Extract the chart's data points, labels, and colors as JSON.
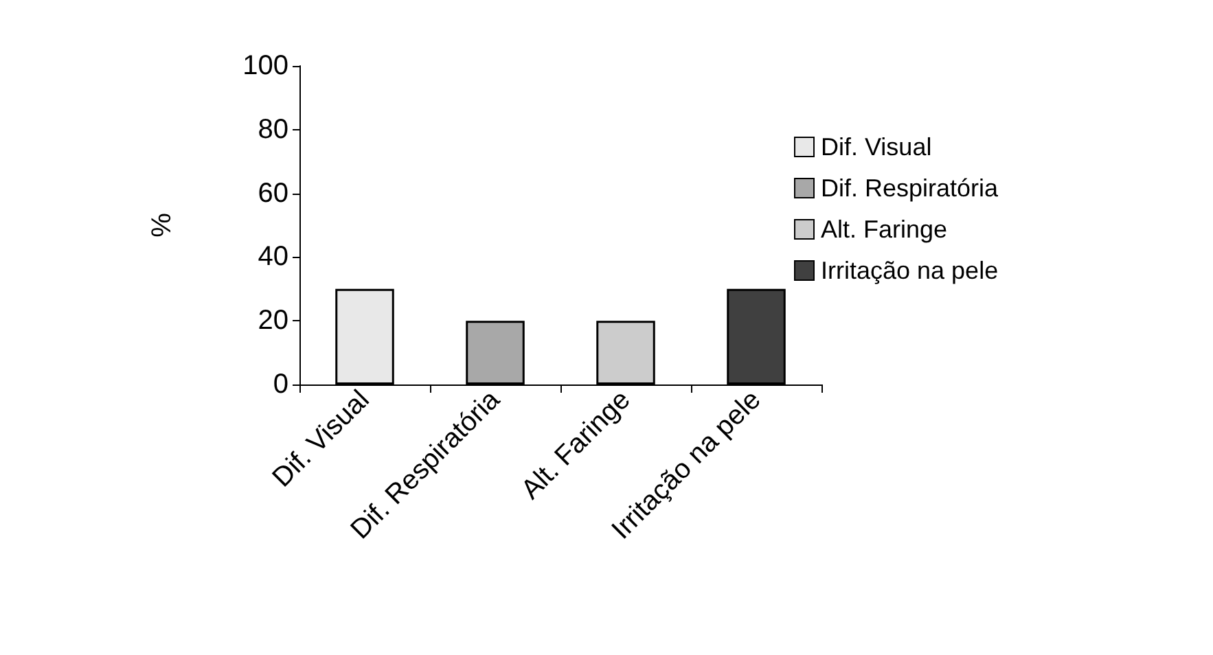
{
  "chart_data": {
    "type": "bar",
    "ylabel": "%",
    "categories": [
      "Dif. Visual",
      "Dif. Respiratória",
      "Alt. Faringe",
      "Irritação na pele"
    ],
    "series": [
      {
        "name": "Dif. Visual",
        "color": "#e8e8e8",
        "values": [
          30,
          null,
          null,
          null
        ]
      },
      {
        "name": "Dif. Respiratória",
        "color": "#a8a8a8",
        "values": [
          null,
          20,
          null,
          null
        ]
      },
      {
        "name": "Alt. Faringe",
        "color": "#cccccc",
        "values": [
          null,
          null,
          20,
          null
        ]
      },
      {
        "name": "Irritação na pele",
        "color": "#404040",
        "values": [
          null,
          null,
          null,
          30
        ]
      }
    ],
    "ylim": [
      0,
      100
    ],
    "yticks": [
      0,
      20,
      40,
      60,
      80,
      100
    ],
    "grid": false,
    "legend": "right"
  }
}
